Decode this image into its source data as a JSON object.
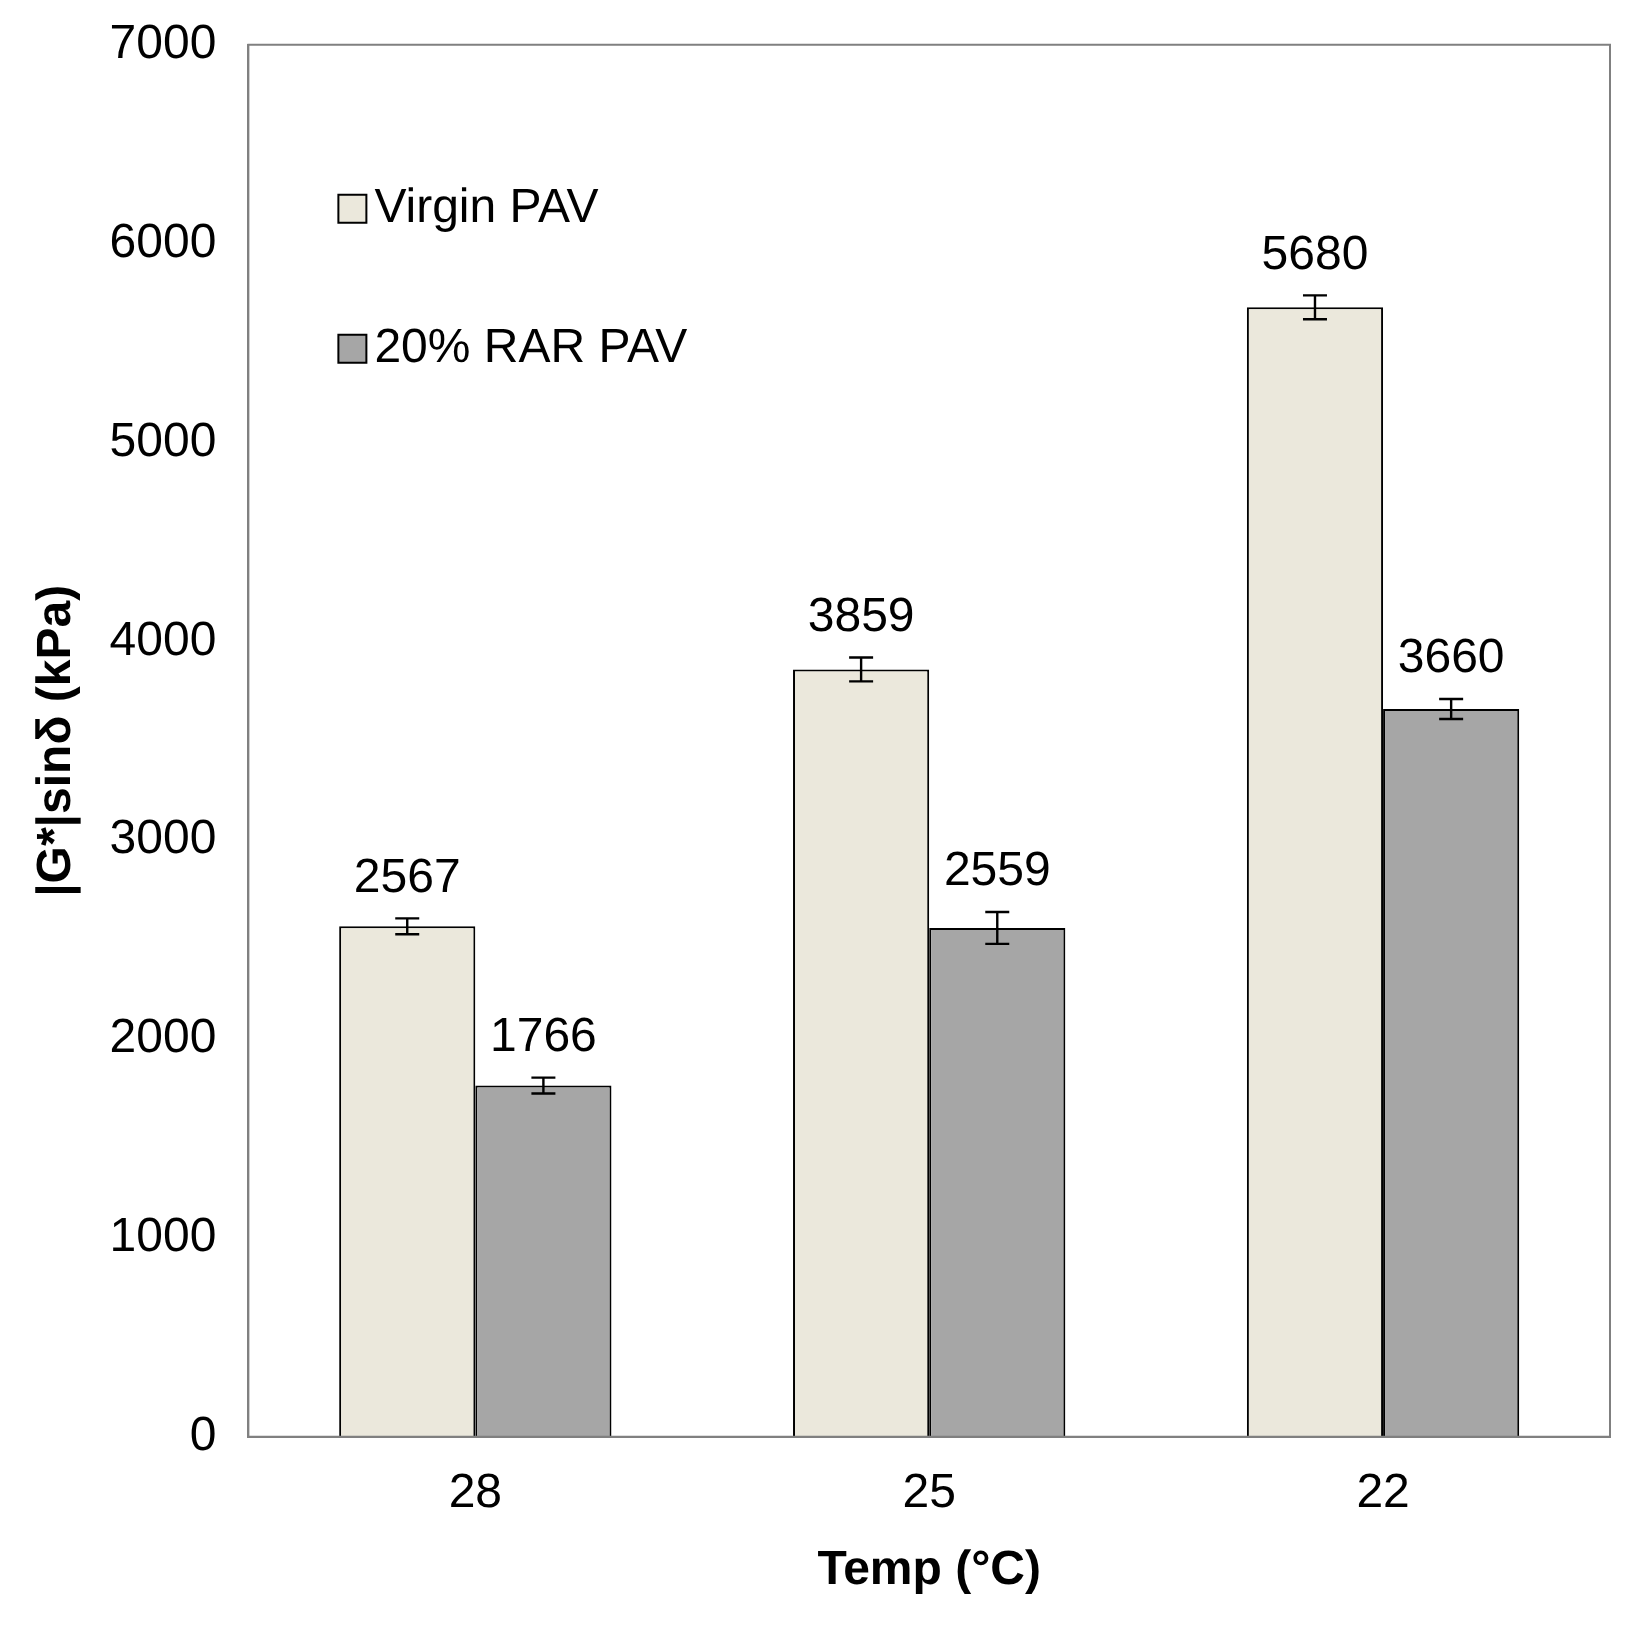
{
  "chart_data": {
    "type": "bar",
    "xlabel": "Temp (°C)",
    "ylabel": "|G*|sinδ (kPa)",
    "categories": [
      "28",
      "25",
      "22"
    ],
    "series": [
      {
        "name": "Virgin PAV",
        "color": "#ebe8dc",
        "values": [
          2567,
          3859,
          5680
        ],
        "errors": [
          40,
          60,
          60
        ]
      },
      {
        "name": "20% RAR PAV",
        "color": "#a6a6a6",
        "values": [
          1766,
          2559,
          3660
        ],
        "errors": [
          40,
          80,
          50
        ]
      }
    ],
    "ylim": [
      0,
      7000
    ],
    "yticks": [
      0,
      1000,
      2000,
      3000,
      4000,
      5000,
      6000,
      7000
    ],
    "grid": false,
    "legend": "top left",
    "data_labels": true
  }
}
